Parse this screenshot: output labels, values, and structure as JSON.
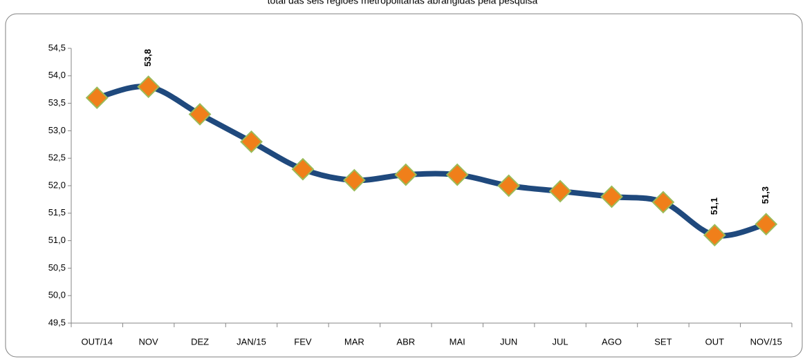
{
  "chart_data": {
    "type": "line",
    "title": "total das seis regiões metropolitanas abrangidas pela pesquisa",
    "categories": [
      "OUT/14",
      "NOV",
      "DEZ",
      "JAN/15",
      "FEV",
      "MAR",
      "ABR",
      "MAI",
      "JUN",
      "JUL",
      "AGO",
      "SET",
      "OUT",
      "NOV/15"
    ],
    "series": [
      {
        "color": "#1f497d",
        "values": [
          53.6,
          53.8,
          53.3,
          52.8,
          52.3,
          52.1,
          52.2,
          52.2,
          52.0,
          51.9,
          51.8,
          51.7,
          51.1,
          51.3
        ],
        "value_labels": [
          null,
          "53,8",
          null,
          null,
          null,
          null,
          null,
          null,
          null,
          null,
          null,
          null,
          "51,1",
          "51,3"
        ]
      }
    ],
    "marker_color": "#f07f1a",
    "ylim": [
      49.5,
      54.5
    ],
    "yticks": [
      {
        "value": 49.5,
        "label": "49,5"
      },
      {
        "value": 50.0,
        "label": "50,0"
      },
      {
        "value": 50.5,
        "label": "50,5"
      },
      {
        "value": 51.0,
        "label": "51,0"
      },
      {
        "value": 51.5,
        "label": "51,5"
      },
      {
        "value": 52.0,
        "label": "52,0"
      },
      {
        "value": 52.5,
        "label": "52,5"
      },
      {
        "value": 53.0,
        "label": "53,0"
      },
      {
        "value": 53.5,
        "label": "53,5"
      },
      {
        "value": 54.0,
        "label": "54,0"
      },
      {
        "value": 54.5,
        "label": "54,5"
      }
    ],
    "grid": false,
    "smooth": true
  }
}
